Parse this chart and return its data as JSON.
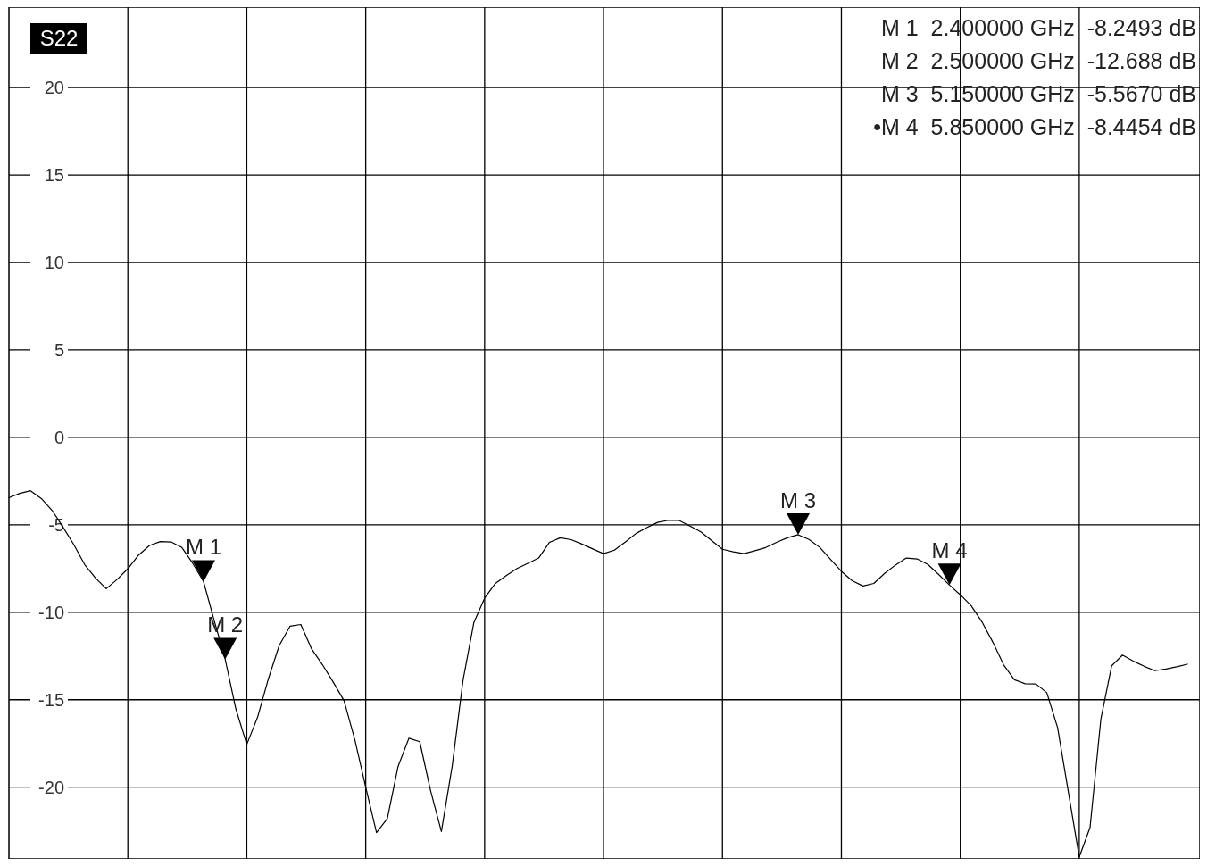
{
  "chart_data": {
    "type": "line",
    "title": "S22",
    "categories": [
      null,
      null,
      null,
      null,
      null,
      null,
      null,
      null,
      null,
      null,
      null,
      null,
      null,
      null,
      null,
      null,
      null,
      null,
      null,
      null,
      null,
      null,
      null,
      null,
      null,
      null,
      null,
      null,
      null,
      null,
      null,
      null,
      null,
      null,
      null,
      null,
      null,
      null,
      null,
      null,
      null,
      null,
      null,
      null,
      null,
      null,
      null,
      null,
      null,
      null,
      null,
      null,
      null,
      null,
      null,
      null,
      null,
      null,
      null,
      null,
      null,
      null,
      null,
      null,
      null,
      null,
      null,
      null,
      null,
      null,
      null,
      null,
      null,
      null,
      null,
      null,
      null,
      null,
      null,
      null,
      null,
      null,
      null,
      null,
      null,
      null,
      null,
      null,
      null,
      null,
      null,
      null,
      null,
      null,
      null,
      null,
      null,
      null,
      null,
      null,
      null,
      null,
      null,
      null,
      null,
      null,
      null,
      null,
      null,
      null
    ],
    "series": [
      {
        "color": "#000000",
        "values": [
          -3.45,
          -3.2,
          -3.05,
          -3.5,
          -4.18,
          -5.13,
          -6.13,
          -7.27,
          -8.04,
          -8.65,
          -8.13,
          -7.51,
          -6.73,
          -6.18,
          -5.96,
          -5.98,
          -6.3,
          -7.2,
          -8.2493,
          -10.5,
          -12.688,
          -15.55,
          -17.56,
          -16.0,
          -13.8,
          -11.9,
          -10.8,
          -10.7,
          -12.1,
          -13.0,
          -14.0,
          -15.06,
          -17.3,
          -20.0,
          -22.6,
          -21.8,
          -18.8,
          -17.2,
          -17.4,
          -20.2,
          -22.54,
          -18.8,
          -13.9,
          -10.6,
          -9.19,
          -8.35,
          -7.9,
          -7.5,
          -7.2,
          -6.9,
          -6.0,
          -5.74,
          -5.85,
          -6.1,
          -6.38,
          -6.65,
          -6.45,
          -5.99,
          -5.5,
          -5.16,
          -4.86,
          -4.74,
          -4.75,
          -5.07,
          -5.4,
          -5.9,
          -6.4,
          -6.55,
          -6.65,
          -6.48,
          -6.3,
          -6.0,
          -5.74,
          -5.567,
          -5.84,
          -6.29,
          -6.98,
          -7.66,
          -8.2,
          -8.5,
          -8.35,
          -7.78,
          -7.3,
          -6.9,
          -6.95,
          -7.27,
          -7.84,
          -8.4454,
          -9.0,
          -9.62,
          -10.55,
          -11.7,
          -13.0,
          -13.86,
          -14.09,
          -14.1,
          -14.6,
          -16.6,
          -20.3,
          -24.0,
          -22.3,
          -16.1,
          -13.06,
          -12.45,
          -12.79,
          -13.09,
          -13.34,
          -13.25,
          -13.12,
          -12.97
        ]
      }
    ],
    "ylim": [
      -24.1,
      24.6
    ],
    "yticks": [
      -20,
      -15,
      -10,
      -5,
      0,
      5,
      10,
      15,
      20
    ],
    "grid": true,
    "tick_labels": "y",
    "annotations": [
      {
        "text": "M 1",
        "y": -8.2493
      },
      {
        "text": "M 2",
        "y": -12.688
      },
      {
        "text": "M 3",
        "y": -5.567
      },
      {
        "text": "M 4",
        "y": -8.4454
      },
      "M 1  2.400000 GHz  -8.2493 dB",
      "M 2  2.500000 GHz  -12.688 dB",
      "M 3  5.150000 GHz  -5.5670 dB",
      "•M 4  5.850000 GHz  -8.4454 dB"
    ]
  }
}
